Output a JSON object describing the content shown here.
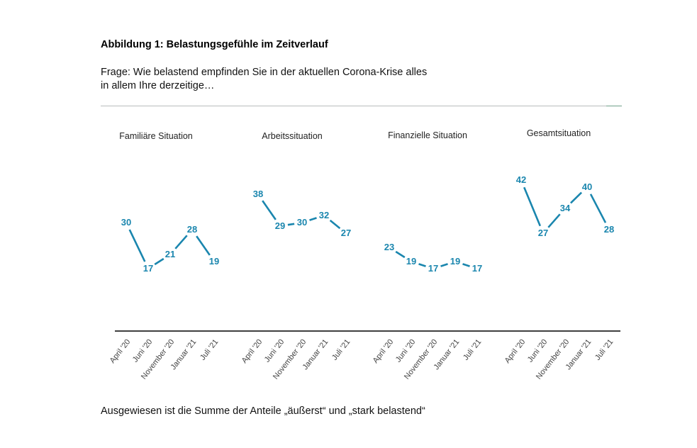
{
  "figure": {
    "title": "Abbildung 1: Belastungsgefühle im Zeitverlauf",
    "question_line1": "Frage: Wie belastend empfinden Sie in der aktuellen Corona-Krise alles",
    "question_line2": "in allem Ihre derzeitige…",
    "footnote": "Ausgewiesen ist die Summe der Anteile „äußerst“ und „stark belastend“"
  },
  "colors": {
    "series": "#1a86ae",
    "axis": "#000000",
    "rule": "#b9bcbc"
  },
  "chart_data": {
    "type": "line",
    "title": "Abbildung 1: Belastungsgefühle im Zeitverlauf",
    "xlabel": "",
    "ylabel": "",
    "categories": [
      "April '20",
      "Juni '20",
      "November '20",
      "Januar '21",
      "Juli '21"
    ],
    "ylim": [
      0,
      45
    ],
    "grid": false,
    "legend": "none",
    "series": [
      {
        "name": "Familiäre Situation",
        "values": [
          30,
          17,
          21,
          28,
          19
        ]
      },
      {
        "name": "Arbeitssituation",
        "values": [
          38,
          29,
          30,
          32,
          27
        ]
      },
      {
        "name": "Finanzielle Situation",
        "values": [
          23,
          19,
          17,
          19,
          17
        ]
      },
      {
        "name": "Gesamtsituation",
        "values": [
          42,
          27,
          34,
          40,
          28
        ]
      }
    ]
  }
}
